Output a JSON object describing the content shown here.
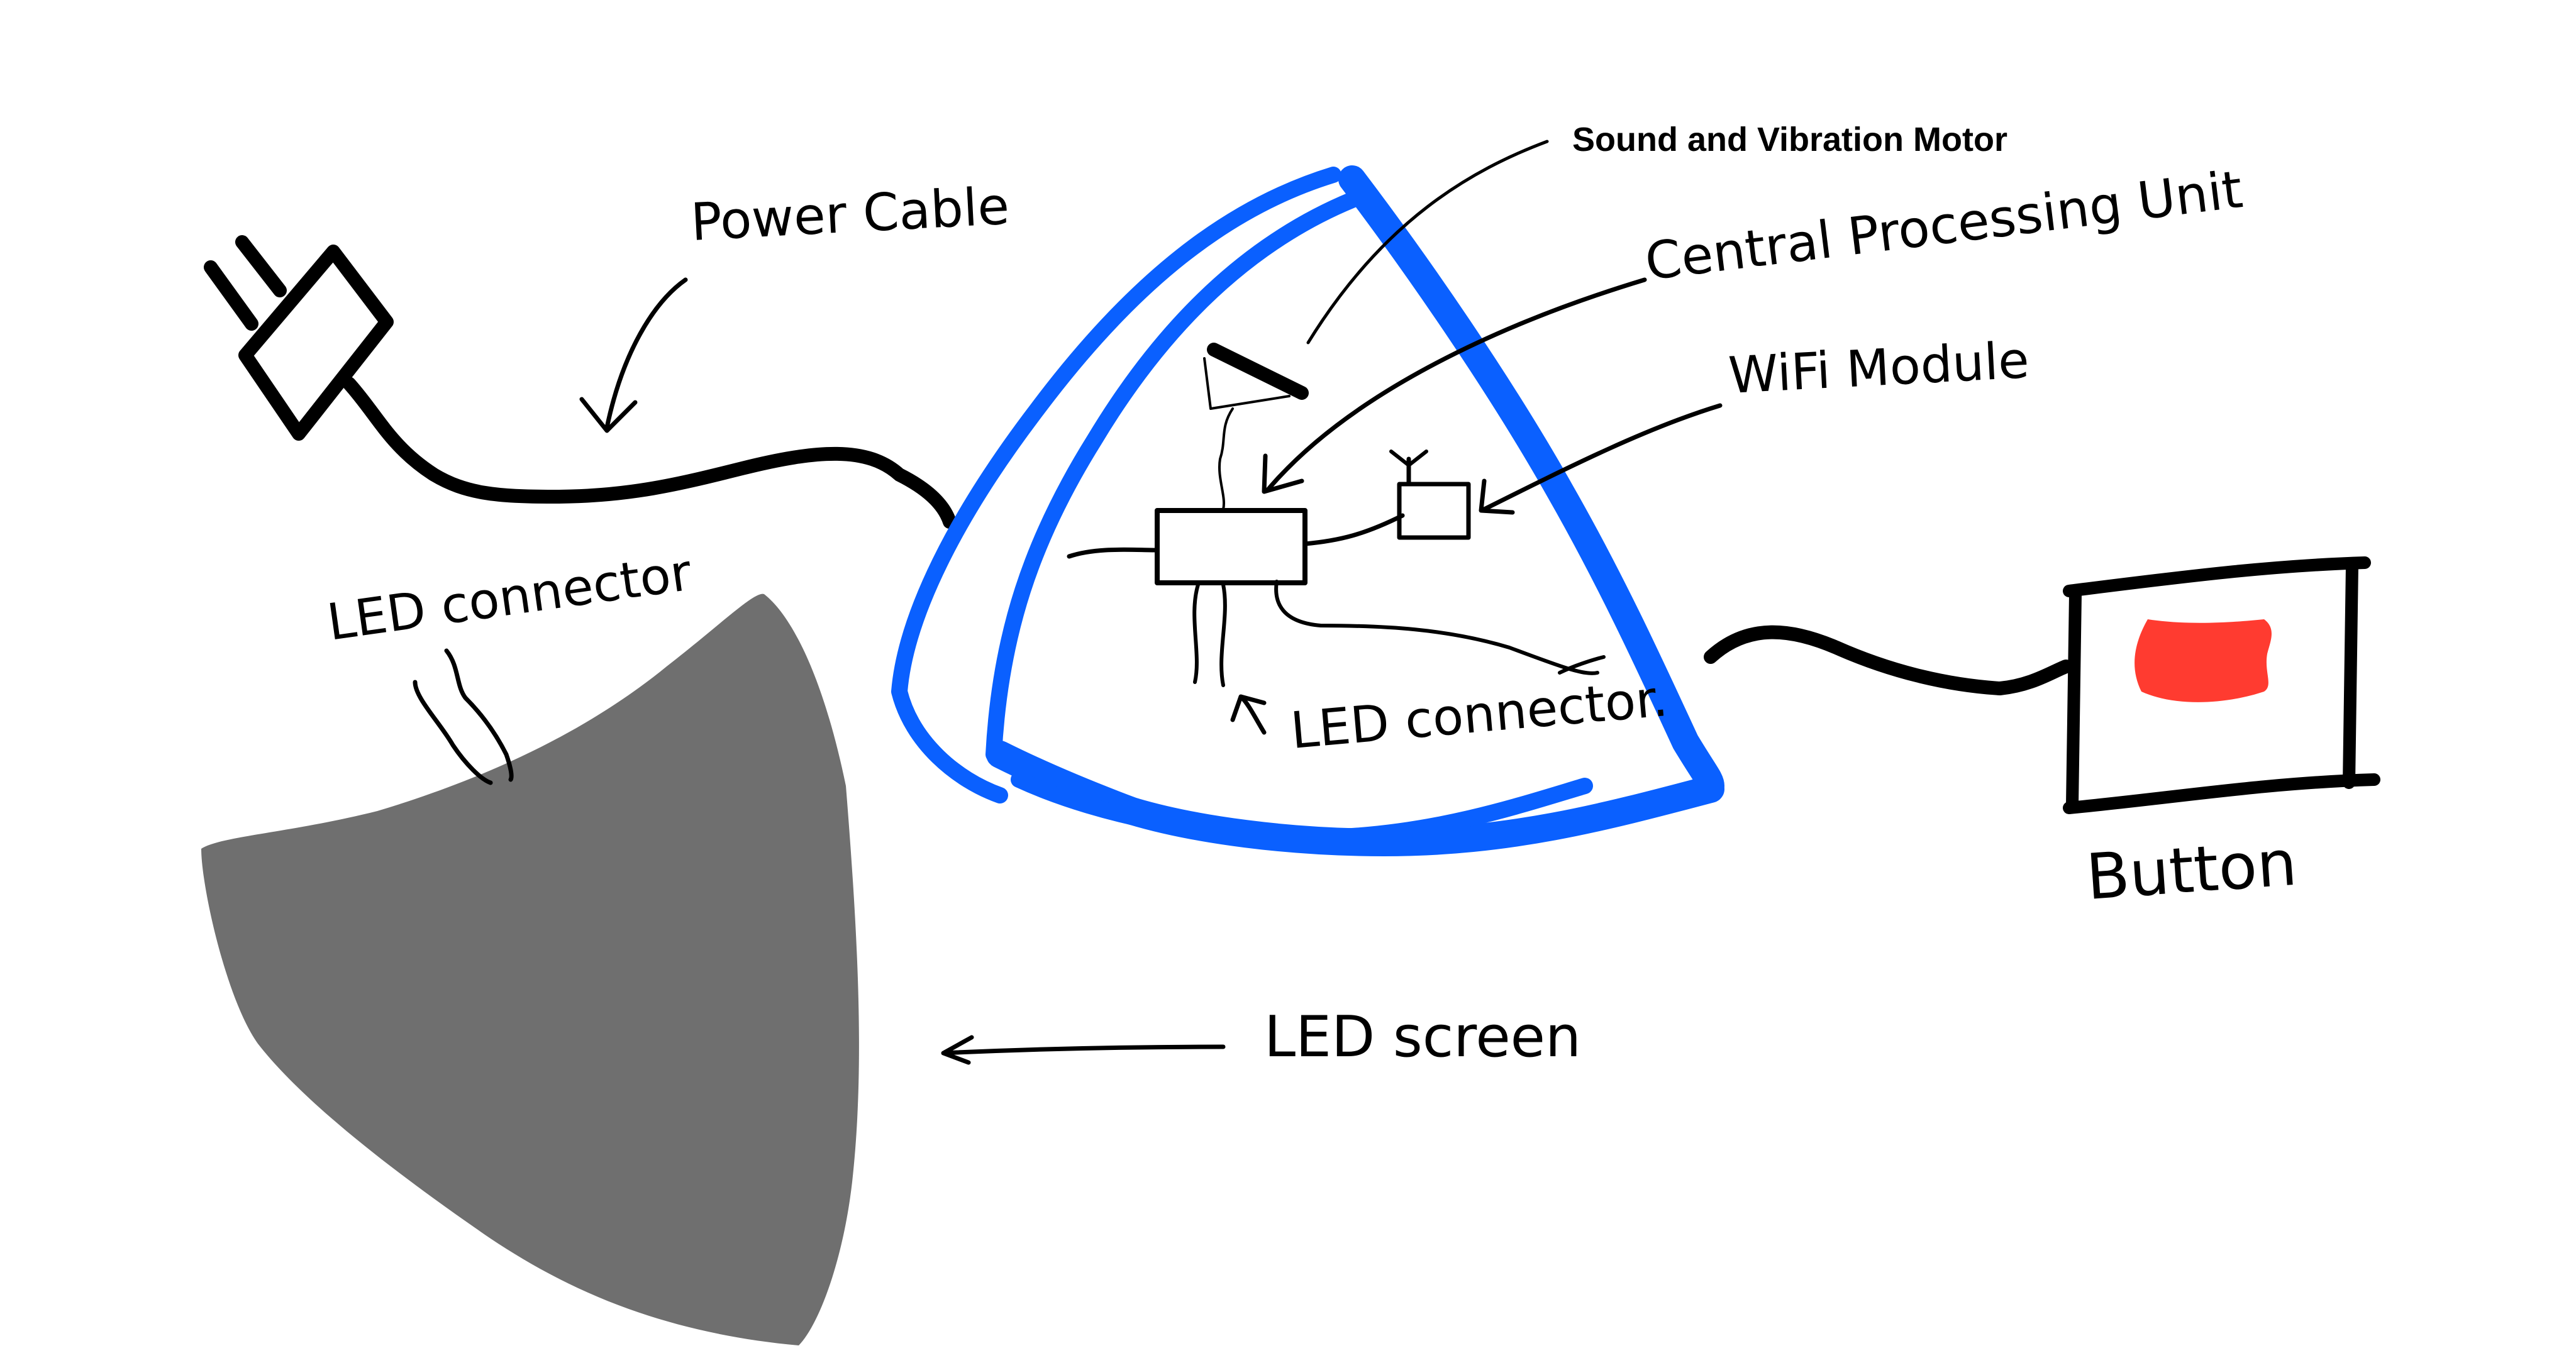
{
  "labels": {
    "power_cable": "Power Cable",
    "led_connector_left": "LED connector",
    "sound_motor": "Sound and Vibration Motor",
    "cpu": "Central Processing Unit",
    "wifi": "WiFi Module",
    "led_connector_center": "LED connector.",
    "led_screen": "LED screen",
    "button": "Button"
  },
  "colors": {
    "enclosure_outline": "#0a60ff",
    "led_screen_fill": "#6f6f6f",
    "button_indicator": "#ff3b30",
    "ink": "#000000",
    "background": "#ffffff"
  }
}
